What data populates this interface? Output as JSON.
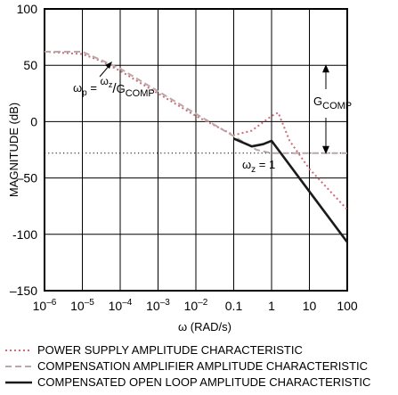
{
  "chart_data": {
    "type": "line",
    "ylabel": "MAGNITUDE (dB)",
    "xlabel": "ω (RAD/s)",
    "ylim": [
      -150,
      100
    ],
    "yticks": [
      100,
      50,
      0,
      -50,
      -100,
      -150
    ],
    "ytick_labels": [
      "100",
      "50",
      "0",
      "–50",
      "-100",
      "–150"
    ],
    "x_scale": "log",
    "xticks": [
      1e-06,
      1e-05,
      0.0001,
      0.001,
      0.01,
      0.1,
      1,
      10,
      100
    ],
    "xtick_labels": [
      {
        "base": "10",
        "exp": "–6"
      },
      {
        "base": "10",
        "exp": "–5"
      },
      {
        "base": "10",
        "exp": "–4"
      },
      {
        "base": "10",
        "exp": "–3"
      },
      {
        "base": "10",
        "exp": "–2"
      },
      {
        "base": "0.1",
        "exp": ""
      },
      {
        "base": "1",
        "exp": ""
      },
      {
        "base": "10",
        "exp": ""
      },
      {
        "base": "100",
        "exp": ""
      }
    ],
    "grid": true,
    "legend_position": "bottom",
    "series": [
      {
        "name": "POWER SUPPLY AMPLITUDE CHARACTERISTIC",
        "style": "dotted",
        "color": "#d06a78",
        "points": [
          [
            1e-06,
            62
          ],
          [
            1e-05,
            60
          ],
          [
            3e-05,
            54
          ],
          [
            0.0001,
            45
          ],
          [
            0.001,
            25
          ],
          [
            0.01,
            5
          ],
          [
            0.1,
            -12
          ],
          [
            0.3,
            -8
          ],
          [
            1,
            5
          ],
          [
            1.5,
            8
          ],
          [
            3,
            -17
          ],
          [
            10,
            -42
          ],
          [
            100,
            -78
          ]
        ]
      },
      {
        "name": "COMPENSATION AMPLIFIER AMPLITUDE CHARACTERISTIC",
        "style": "dashed",
        "color": "#b8a8a8",
        "points": [
          [
            1e-06,
            62
          ],
          [
            1e-05,
            62
          ],
          [
            0.0001,
            47
          ],
          [
            0.001,
            27
          ],
          [
            0.01,
            7
          ],
          [
            0.1,
            -13
          ],
          [
            0.4,
            -25
          ],
          [
            1,
            -28
          ],
          [
            10,
            -28
          ],
          [
            100,
            -28
          ]
        ]
      },
      {
        "name": "COMPENSATED OPEN LOOP AMPLITUDE CHARACTERISTIC",
        "style": "solid",
        "color": "#1a1a1a",
        "points": [
          [
            0.1,
            -15
          ],
          [
            0.3,
            -22
          ],
          [
            0.6,
            -20
          ],
          [
            1,
            -17
          ],
          [
            10,
            -62
          ],
          [
            100,
            -107
          ]
        ]
      }
    ],
    "annotations": {
      "pole_label": {
        "main": "ω",
        "main_sub": "p",
        "eq": " = ",
        "num": "ω",
        "num_sub": "z",
        "slash": "/",
        "den": "G",
        "den_sub": "COMP"
      },
      "zero_label": {
        "main": "ω",
        "main_sub": "z",
        "eq": " = 1"
      },
      "gain_label": {
        "main": "G",
        "sub": "COMP"
      }
    }
  }
}
